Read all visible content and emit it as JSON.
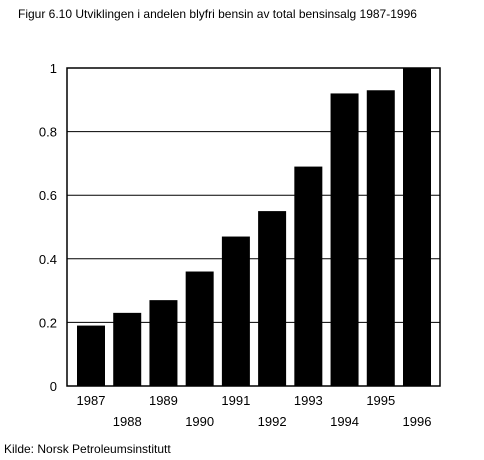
{
  "figure": {
    "title": "Figur 6.10  Utviklingen i andelen blyfri bensin av total bensinsalg 1987-1996",
    "source": "Kilde: Norsk Petroleumsinstitutt"
  },
  "chart_data": {
    "type": "bar",
    "categories": [
      "1987",
      "1988",
      "1989",
      "1990",
      "1991",
      "1992",
      "1993",
      "1994",
      "1995",
      "1996"
    ],
    "values": [
      0.19,
      0.23,
      0.27,
      0.36,
      0.47,
      0.55,
      0.69,
      0.92,
      0.93,
      1.0
    ],
    "ylim": [
      0,
      1
    ],
    "yticks": [
      0,
      0.2,
      0.4,
      0.6,
      0.8,
      1
    ],
    "ytick_labels": [
      "0",
      "0.2",
      "0.4",
      "0.6",
      "0.8",
      "1"
    ],
    "grid": true,
    "bar_color": "#000000",
    "grid_color": "#000000",
    "title": "",
    "xlabel": "",
    "ylabel": ""
  }
}
